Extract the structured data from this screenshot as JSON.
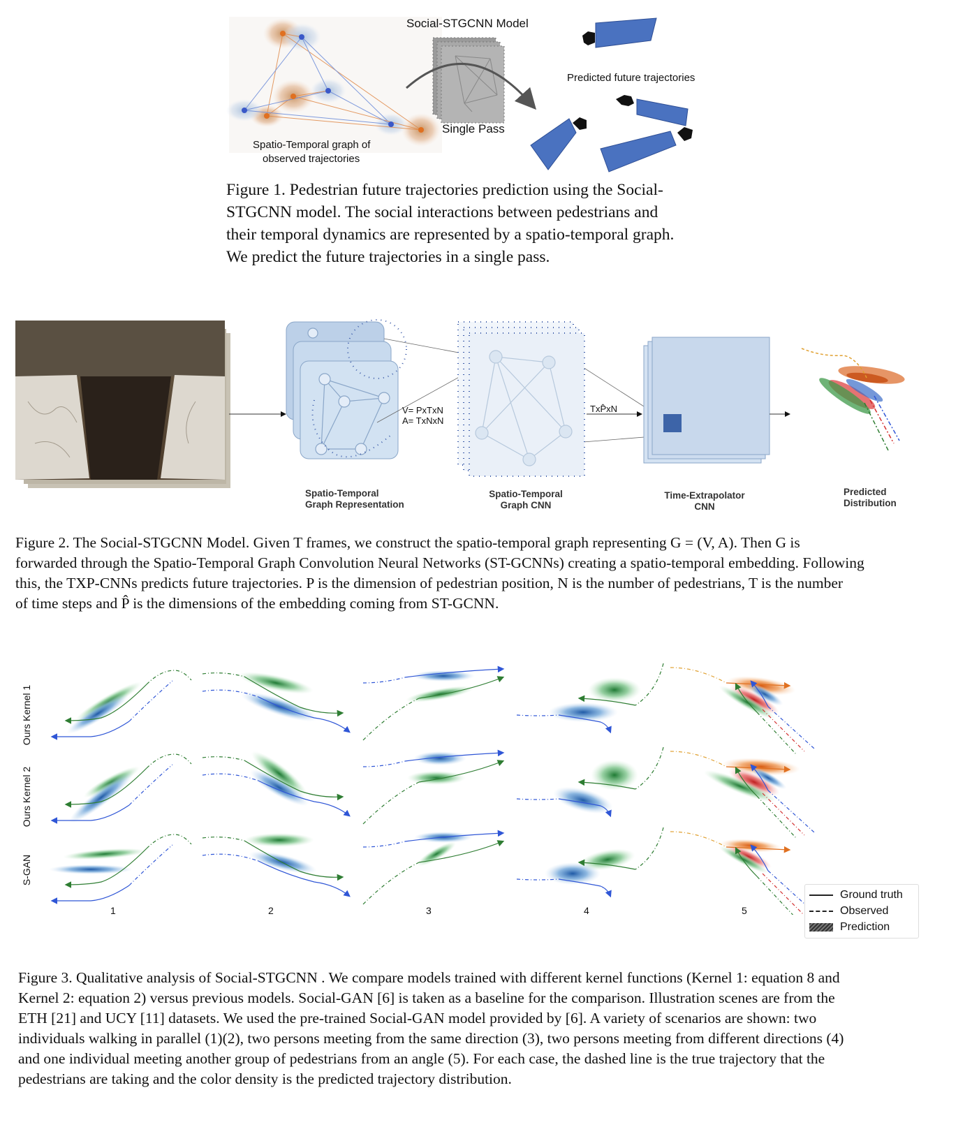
{
  "figure1": {
    "model_label": "Social-STGCNN Model",
    "single_pass_label": "Single Pass",
    "predicted_label": "Predicted future trajectories",
    "graph_label_line1": "Spatio-Temporal graph of",
    "graph_label_line2": "observed trajectories",
    "caption_lines": [
      "Figure 1. Pedestrian future trajectories prediction using the Social-",
      "STGCNN model. The social interactions between pedestrians and",
      "their temporal dynamics are represented by a spatio-temporal graph.",
      "We predict the future trajectories in a single pass."
    ]
  },
  "figure2": {
    "va_line1": "V= PxTxN",
    "va_line2": "A= TxNxN",
    "txpn_label": "TxP̂xN",
    "stage1_line1": "Spatio-Temporal",
    "stage1_line2": "Graph Representation",
    "stage2_line1": "Spatio-Temporal",
    "stage2_line2": "Graph CNN",
    "stage3_line1": "Time-Extrapolator",
    "stage3_line2": "CNN",
    "stage4_line1": "Predicted",
    "stage4_line2": "Distribution",
    "caption_lines": [
      "Figure 2. The Social-STGCNN Model. Given T frames, we construct the spatio-temporal graph representing G = (V, A). Then G is",
      "forwarded through the Spatio-Temporal Graph Convolution Neural Networks (ST-GCNNs) creating a spatio-temporal embedding. Following",
      "this, the TXP-CNNs predicts future trajectories. P is the dimension of pedestrian position, N is the number of pedestrians, T is the number",
      "of time steps and P̂ is the dimensions of the embedding coming from ST-GCNN."
    ]
  },
  "figure3": {
    "row_labels": [
      "Ours Kernel 1",
      "Ours Kernel 2",
      "S-GAN"
    ],
    "column_labels": [
      "1",
      "2",
      "3",
      "4",
      "5"
    ],
    "legend": {
      "ground_truth": "Ground truth",
      "observed": "Observed",
      "prediction": "Prediction"
    },
    "caption_lines": [
      "Figure 3. Qualitative analysis of Social-STGCNN . We compare models trained with different kernel functions (Kernel 1: equation 8 and",
      "Kernel 2: equation 2) versus previous models. Social-GAN [6] is taken as a baseline for the comparison. Illustration scenes are from the",
      "ETH [21] and UCY [11] datasets. We used the pre-trained Social-GAN model provided by [6]. A variety of scenarios are shown: two",
      "individuals walking in parallel (1)(2), two persons meeting from the same direction (3), two persons meeting from different directions (4)",
      "and one individual meeting another group of pedestrians from an angle (5). For each case, the dashed line is the true trajectory that the",
      "pedestrians are taking and the color density is the predicted trajectory distribution."
    ]
  },
  "colors": {
    "blue": "#2f56d6",
    "green": "#2e7d32",
    "orange": "#e07020",
    "red": "#d32f2f",
    "panel_blue": "#4a72c0"
  }
}
